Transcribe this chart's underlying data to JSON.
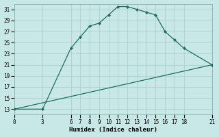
{
  "xlabel": "Humidex (Indice chaleur)",
  "bg_color": "#c8e8e8",
  "grid_color": "#b0d0d0",
  "line_color": "#1a6e60",
  "xlim": [
    0,
    21
  ],
  "ylim": [
    12,
    32
  ],
  "xticks": [
    0,
    3,
    6,
    7,
    8,
    9,
    10,
    11,
    12,
    13,
    14,
    15,
    16,
    17,
    18,
    21
  ],
  "yticks": [
    13,
    15,
    17,
    19,
    21,
    23,
    25,
    27,
    29,
    31
  ],
  "line1_x": [
    0,
    3,
    6,
    7,
    8,
    9,
    10,
    11,
    12,
    13,
    14,
    15,
    16,
    17,
    18,
    21
  ],
  "line1_y": [
    13,
    13,
    24,
    26,
    28,
    28.5,
    30,
    31.5,
    31.5,
    31,
    30.5,
    30,
    27,
    25.5,
    24,
    21
  ],
  "line2_x": [
    0,
    21
  ],
  "line2_y": [
    13,
    21
  ]
}
